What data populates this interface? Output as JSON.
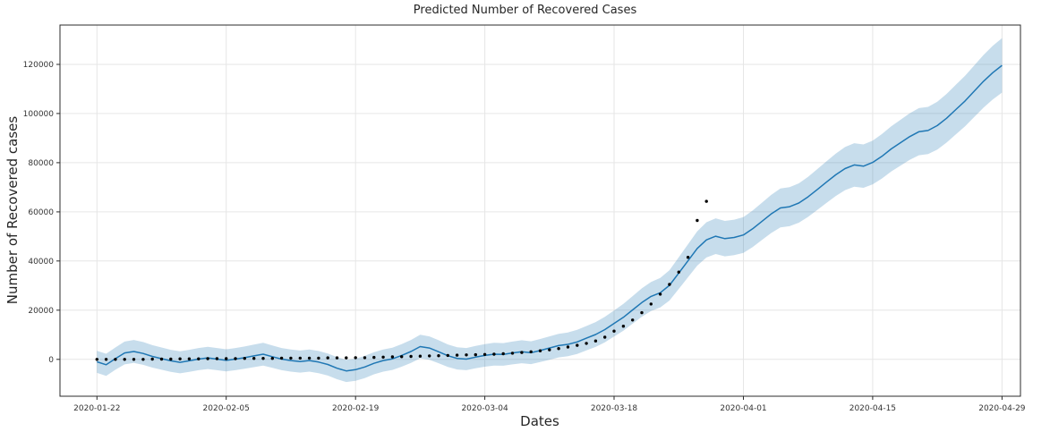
{
  "chart_data": {
    "type": "line",
    "title": "Predicted Number of Recovered Cases",
    "xlabel": "Dates",
    "ylabel": "Number of Recovered cases",
    "grid": true,
    "legend": "none",
    "x_tick_labels": [
      "2020-01-22",
      "2020-02-05",
      "2020-02-19",
      "2020-03-04",
      "2020-03-18",
      "2020-04-01",
      "2020-04-15",
      "2020-04-29"
    ],
    "x_tick_days": [
      0,
      14,
      28,
      42,
      56,
      70,
      84,
      98
    ],
    "y_ticks": [
      0,
      20000,
      40000,
      60000,
      80000,
      100000,
      120000
    ],
    "xlim_days": [
      -4,
      100
    ],
    "ylim": [
      -15000,
      136000
    ],
    "series": [
      {
        "name": "predicted-line",
        "type": "line",
        "color": "#1f77b4",
        "start_day": 0,
        "values": [
          -1000,
          -2200,
          300,
          2600,
          3200,
          2400,
          1200,
          300,
          -600,
          -1200,
          -600,
          100,
          600,
          100,
          -400,
          100,
          700,
          1400,
          2100,
          1100,
          100,
          -500,
          -900,
          -500,
          -1100,
          -2100,
          -3600,
          -4700,
          -4200,
          -3100,
          -1600,
          -500,
          200,
          1600,
          3200,
          5200,
          4600,
          3100,
          1500,
          400,
          100,
          900,
          1600,
          2100,
          2000,
          2600,
          3100,
          2700,
          3600,
          4600,
          5600,
          6100,
          7100,
          8600,
          10100,
          12100,
          14600,
          17100,
          20100,
          23100,
          25600,
          27100,
          30100,
          35100,
          40100,
          45100,
          48600,
          50100,
          49100,
          49600,
          50600,
          53100,
          56100,
          59100,
          61600,
          62100,
          63600,
          66100,
          69100,
          72100,
          75100,
          77600,
          79100,
          78600,
          80100,
          82600,
          85600,
          88100,
          90600,
          92600,
          93100,
          95100,
          98100,
          101600,
          105100,
          109100,
          113100,
          116600,
          119600
        ]
      },
      {
        "name": "confidence-band",
        "type": "band",
        "color": "#1f77b4",
        "opacity": 0.25,
        "base_halfwidth": 4500,
        "fraction_halfwidth": 0.055,
        "follows": "predicted-line"
      },
      {
        "name": "actual-points",
        "type": "scatter",
        "color": "#000000",
        "start_day": 0,
        "values": [
          0,
          0,
          0,
          0,
          0,
          0,
          100,
          100,
          100,
          200,
          200,
          200,
          300,
          300,
          300,
          300,
          400,
          400,
          400,
          400,
          500,
          500,
          500,
          500,
          500,
          600,
          600,
          600,
          700,
          700,
          800,
          900,
          1000,
          1100,
          1200,
          1300,
          1400,
          1500,
          1600,
          1700,
          1800,
          1900,
          2000,
          2100,
          2300,
          2500,
          2800,
          3100,
          3500,
          3900,
          4400,
          5000,
          5700,
          6500,
          7500,
          9000,
          11500,
          13500,
          16000,
          19000,
          22500,
          26500,
          30500,
          35500,
          41500,
          56500,
          64300
        ]
      }
    ]
  },
  "colors": {
    "grid": "#e6e6e6",
    "spine": "#2b2b2b",
    "tick_text": "#333333",
    "background": "#ffffff"
  }
}
